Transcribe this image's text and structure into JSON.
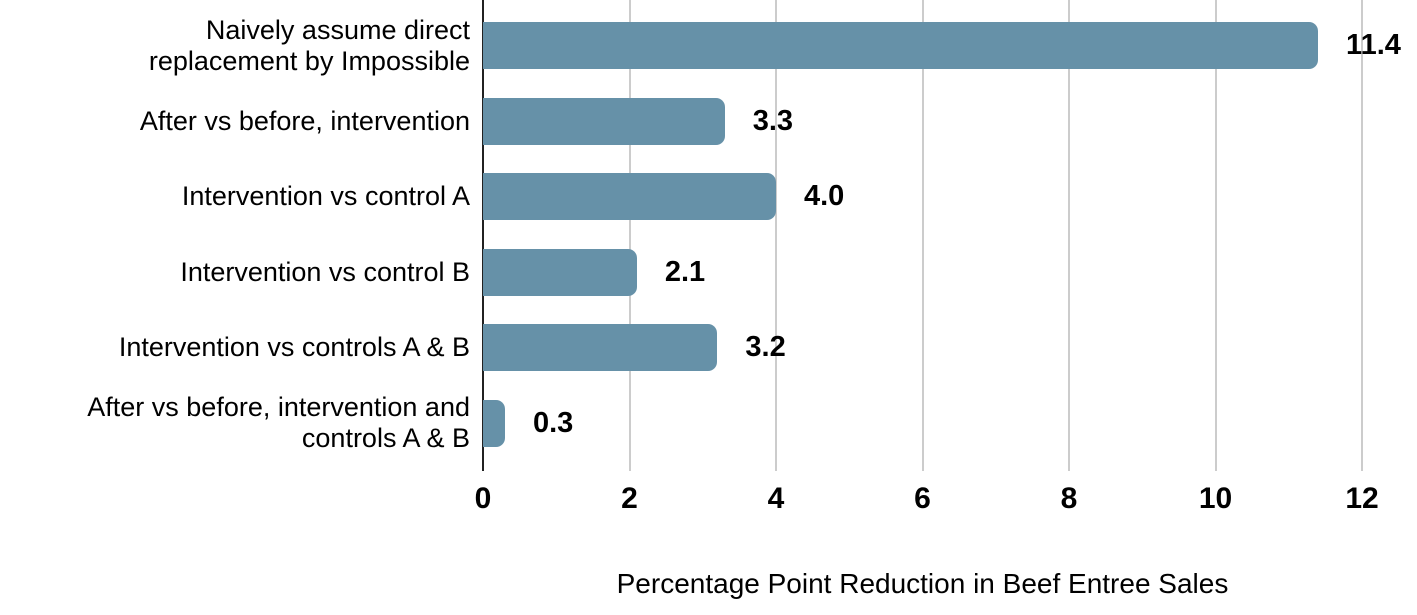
{
  "chart_data": {
    "type": "bar",
    "orientation": "horizontal",
    "title": "",
    "xlabel": "Percentage Point Reduction in Beef Entree Sales",
    "ylabel": "",
    "categories": [
      "Naively assume direct\nreplacement by Impossible",
      "After vs before, intervention",
      "Intervention vs control A",
      "Intervention vs control B",
      "Intervention vs controls A & B",
      "After vs before, intervention and\ncontrols A & B"
    ],
    "values": [
      11.4,
      3.3,
      4.0,
      2.1,
      3.2,
      0.3
    ],
    "value_labels": [
      "11.4",
      "3.3",
      "4.0",
      "2.1",
      "3.2",
      "0.3"
    ],
    "xlim": [
      0,
      12
    ],
    "xticks": [
      0,
      2,
      4,
      6,
      8,
      10,
      12
    ],
    "grid": true,
    "legend": "none",
    "colors": {
      "bar": "#6691A8",
      "axis_line": "#212121",
      "gridline": "#CCCCCC",
      "text": "#000000"
    }
  }
}
